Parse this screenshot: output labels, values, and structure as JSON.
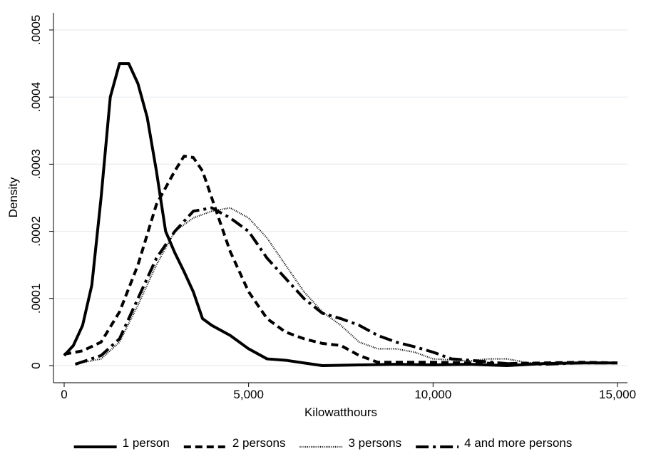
{
  "chart_data": {
    "type": "line",
    "y_label": "Density",
    "x_label": "Kilowatthours",
    "xlim": [
      -290,
      15270
    ],
    "ylim": [
      -2.55e-05,
      0.0005255
    ],
    "xticks": [
      0,
      {
        "value": 5000,
        "label": "5,000"
      },
      {
        "value": 10000,
        "label": "10,000"
      },
      {
        "value": 15000,
        "label": "15,000"
      }
    ],
    "yticks": [
      0,
      {
        "value": 0.0001,
        "label": ".0001"
      },
      {
        "value": 0.0002,
        "label": ".0002"
      },
      {
        "value": 0.0003,
        "label": ".0003"
      },
      {
        "value": 0.0004,
        "label": ".0004"
      },
      {
        "value": 0.0005,
        "label": ".0005"
      }
    ],
    "grid": "y",
    "legend": "bottom",
    "series": [
      {
        "name": "1 person",
        "color": "#000000",
        "style": "solid",
        "x": [
          0,
          250,
          500,
          750,
          1000,
          1250,
          1500,
          1750,
          2000,
          2250,
          2500,
          2750,
          3000,
          3250,
          3500,
          3750,
          4000,
          4500,
          5000,
          5500,
          6000,
          6500,
          7000,
          8000,
          9000,
          10000,
          11000,
          12000,
          13000,
          14000,
          15000
        ],
        "values": [
          1.5e-05,
          3e-05,
          6e-05,
          0.00012,
          0.00025,
          0.0004,
          0.00045,
          0.00045,
          0.00042,
          0.00037,
          0.00029,
          0.0002,
          0.000168,
          0.00014,
          0.00011,
          7e-05,
          6e-05,
          4.5e-05,
          2.5e-05,
          1e-05,
          8e-06,
          4e-06,
          0,
          1e-06,
          2e-06,
          1e-06,
          2e-06,
          0,
          3e-06,
          4e-06,
          4e-06
        ]
      },
      {
        "name": "2 persons",
        "color": "#000000",
        "style": "dash",
        "x": [
          0,
          500,
          1000,
          1500,
          2000,
          2500,
          3000,
          3250,
          3500,
          3750,
          4000,
          4500,
          5000,
          5500,
          6000,
          6500,
          7000,
          7500,
          8000,
          8500,
          9000,
          10000,
          11000,
          12000,
          13000,
          14000,
          15000
        ],
        "values": [
          1.7e-05,
          2.2e-05,
          3.5e-05,
          8e-05,
          0.00015,
          0.00024,
          0.00029,
          0.000312,
          0.00031,
          0.00029,
          0.00025,
          0.00017,
          0.00011,
          7e-05,
          5e-05,
          4e-05,
          3.3e-05,
          3e-05,
          1.5e-05,
          5e-06,
          5e-06,
          5e-06,
          4e-06,
          3e-06,
          4e-06,
          5e-06,
          4e-06
        ]
      },
      {
        "name": "3 persons",
        "color": "#000000",
        "style": "dot",
        "x": [
          350,
          1000,
          1500,
          2000,
          2500,
          3000,
          3500,
          4000,
          4500,
          5000,
          5500,
          6000,
          6500,
          7000,
          7500,
          8000,
          8500,
          9000,
          9500,
          10000,
          11000,
          11500,
          12000,
          12500,
          13000,
          14000,
          15000
        ],
        "values": [
          3e-06,
          1e-05,
          3.5e-05,
          9e-05,
          0.00015,
          0.0002,
          0.00022,
          0.00023,
          0.000235,
          0.00022,
          0.00019,
          0.00015,
          0.00011,
          8e-05,
          6e-05,
          3.5e-05,
          2.5e-05,
          2.5e-05,
          2e-05,
          1e-05,
          7e-06,
          1e-05,
          1e-05,
          5e-06,
          2e-06,
          4e-06,
          4e-06
        ]
      },
      {
        "name": "4 and more persons",
        "color": "#000000",
        "style": "dashdot",
        "x": [
          300,
          1000,
          1500,
          2000,
          2500,
          3000,
          3500,
          4000,
          4500,
          5000,
          5500,
          6000,
          6500,
          7000,
          7500,
          8000,
          8500,
          9000,
          9500,
          10000,
          10500,
          11000,
          12000,
          13000,
          14000,
          15000
        ],
        "values": [
          2e-06,
          1.5e-05,
          4e-05,
          0.0001,
          0.00016,
          0.0002,
          0.00023,
          0.000235,
          0.00022,
          0.0002,
          0.00016,
          0.00013,
          0.0001,
          7.8e-05,
          7e-05,
          6e-05,
          4.5e-05,
          3.5e-05,
          2.8e-05,
          2e-05,
          1e-05,
          8e-06,
          3e-06,
          2e-06,
          4e-06,
          4e-06
        ]
      }
    ]
  }
}
